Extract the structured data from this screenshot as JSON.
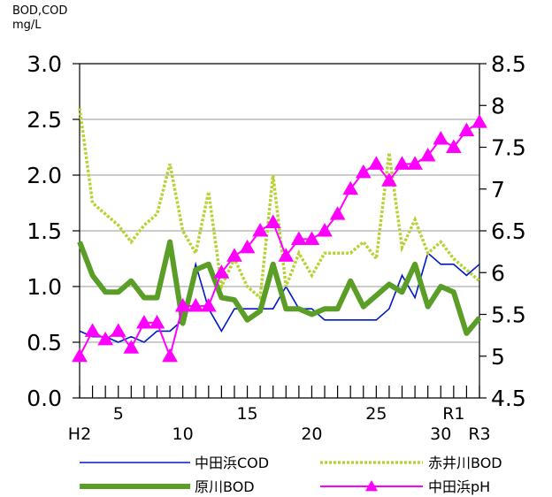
{
  "chart_data": {
    "type": "line",
    "ylabel_left": [
      "BOD,COD",
      "mg/L"
    ],
    "ylim_left": [
      0,
      3.0
    ],
    "yticks_left": [
      "0.0",
      "0.5",
      "1.0",
      "1.5",
      "2.0",
      "2.5",
      "3.0"
    ],
    "ylim_right": [
      4.5,
      8.5
    ],
    "yticks_right": [
      "4.5",
      "5",
      "5.5",
      "6",
      "6.5",
      "7",
      "7.5",
      "8",
      "8.5"
    ],
    "x": [
      "H2",
      "H3",
      "H4",
      "H5",
      "H6",
      "H7",
      "H8",
      "H9",
      "H10",
      "H11",
      "H12",
      "H13",
      "H14",
      "H15",
      "H16",
      "H17",
      "H18",
      "H19",
      "H20",
      "H21",
      "H22",
      "H23",
      "H24",
      "H25",
      "H26",
      "H27",
      "H28",
      "H29",
      "H30",
      "R1",
      "R2",
      "R3"
    ],
    "xticklabels": [
      {
        "i": 0,
        "text": "H2",
        "row": 2
      },
      {
        "i": 3,
        "text": "5",
        "row": 1
      },
      {
        "i": 8,
        "text": "10",
        "row": 2
      },
      {
        "i": 13,
        "text": "15",
        "row": 1
      },
      {
        "i": 18,
        "text": "20",
        "row": 2
      },
      {
        "i": 23,
        "text": "25",
        "row": 1
      },
      {
        "i": 28,
        "text": "30",
        "row": 2
      },
      {
        "i": 29,
        "text": "R1",
        "row": 1
      },
      {
        "i": 31,
        "text": "R3",
        "row": 2
      }
    ],
    "series": [
      {
        "name": "中田浜COD",
        "axis": "left",
        "color": "#0019c8",
        "style": "thin",
        "values": [
          0.6,
          0.55,
          0.55,
          0.5,
          0.55,
          0.5,
          0.6,
          0.6,
          0.7,
          1.2,
          0.8,
          0.6,
          0.8,
          0.8,
          0.8,
          0.8,
          1.0,
          0.8,
          0.8,
          0.7,
          0.7,
          0.7,
          0.7,
          0.7,
          0.8,
          1.1,
          0.9,
          1.3,
          1.2,
          1.2,
          1.1,
          1.2
        ]
      },
      {
        "name": "赤井川BOD",
        "axis": "left",
        "color": "#b5d334",
        "style": "dotted",
        "values": [
          2.6,
          1.75,
          1.65,
          1.55,
          1.4,
          1.55,
          1.65,
          2.1,
          1.5,
          1.3,
          1.85,
          1.0,
          1.25,
          1.0,
          0.9,
          2.0,
          1.0,
          1.3,
          1.1,
          1.3,
          1.3,
          1.3,
          1.4,
          1.25,
          2.2,
          1.35,
          1.6,
          1.3,
          1.4,
          1.25,
          1.15,
          1.05
        ]
      },
      {
        "name": "原川BOD",
        "axis": "left",
        "color": "#5a9e28",
        "style": "thick",
        "values": [
          1.4,
          1.1,
          0.95,
          0.95,
          1.05,
          0.9,
          0.9,
          1.4,
          0.67,
          1.15,
          1.2,
          0.9,
          0.88,
          0.7,
          0.78,
          1.2,
          0.8,
          0.8,
          0.75,
          0.8,
          0.8,
          1.05,
          0.82,
          0.92,
          1.02,
          0.95,
          1.2,
          0.82,
          1.0,
          0.95,
          0.58,
          0.72
        ]
      },
      {
        "name": "中田浜pH",
        "axis": "right",
        "color": "#ff00ff",
        "style": "triangle",
        "values": [
          5.0,
          5.3,
          5.2,
          5.3,
          5.1,
          5.4,
          5.4,
          5.0,
          5.6,
          5.6,
          5.6,
          6.0,
          6.2,
          6.3,
          6.5,
          6.6,
          6.2,
          6.4,
          6.4,
          6.5,
          6.7,
          7.0,
          7.2,
          7.3,
          7.1,
          7.3,
          7.3,
          7.4,
          7.6,
          7.5,
          7.7,
          7.8
        ]
      }
    ]
  }
}
